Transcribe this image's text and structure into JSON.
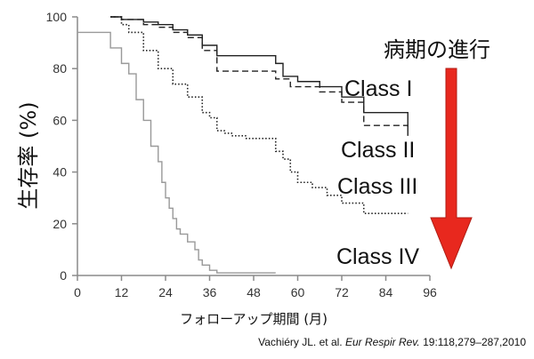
{
  "chart_data": {
    "type": "line",
    "title": "",
    "xlabel": "フォローアップ期間 (月)",
    "ylabel": "生存率 (%)",
    "xlim": [
      0,
      96
    ],
    "ylim": [
      0,
      100
    ],
    "xticks": [
      0,
      12,
      24,
      36,
      48,
      60,
      72,
      84,
      96
    ],
    "yticks": [
      0,
      20,
      40,
      60,
      80,
      100
    ],
    "grid": false,
    "series": [
      {
        "name": "Class I",
        "color": "#222222",
        "dash": "solid",
        "x": [
          9,
          12,
          12,
          18,
          18,
          22,
          22,
          26,
          26,
          30,
          30,
          34,
          34,
          38,
          38,
          54,
          54,
          56,
          56,
          60,
          60,
          66,
          66,
          72,
          72,
          78,
          78,
          90,
          90
        ],
        "y": [
          100,
          100,
          99,
          99,
          98,
          98,
          97,
          97,
          95,
          95,
          93,
          93,
          89,
          89,
          85,
          85,
          82,
          82,
          77,
          77,
          75,
          75,
          73,
          73,
          69,
          69,
          63,
          63,
          56
        ]
      },
      {
        "name": "Class II",
        "color": "#222222",
        "dash": "dashed",
        "x": [
          9,
          12,
          12,
          18,
          18,
          22,
          22,
          26,
          26,
          30,
          30,
          34,
          34,
          38,
          38,
          54,
          54,
          58,
          58,
          66,
          66,
          72,
          72,
          78,
          78,
          90,
          90
        ],
        "y": [
          100,
          100,
          99,
          99,
          97,
          97,
          96,
          96,
          94,
          94,
          92,
          92,
          87,
          87,
          79,
          79,
          76,
          76,
          73,
          73,
          71,
          71,
          67,
          67,
          58,
          58,
          54
        ]
      },
      {
        "name": "Class III",
        "color": "#222222",
        "dash": "dotted",
        "x": [
          9,
          12,
          12,
          14,
          14,
          18,
          18,
          22,
          22,
          26,
          26,
          30,
          30,
          34,
          34,
          36,
          36,
          38,
          38,
          40,
          40,
          42,
          42,
          46,
          46,
          54,
          54,
          56,
          56,
          58,
          58,
          60,
          60,
          64,
          64,
          68,
          68,
          72,
          72,
          78,
          78,
          90
        ],
        "y": [
          100,
          100,
          97,
          97,
          94,
          94,
          87,
          87,
          80,
          80,
          74,
          74,
          69,
          69,
          63,
          63,
          61,
          61,
          56,
          56,
          55,
          55,
          54,
          54,
          53,
          53,
          48,
          48,
          45,
          45,
          40,
          40,
          36,
          36,
          34,
          34,
          31,
          31,
          28,
          28,
          24,
          24
        ]
      },
      {
        "name": "Class IV",
        "color": "#999999",
        "dash": "solid",
        "x": [
          0,
          9,
          9,
          12,
          12,
          14,
          14,
          16,
          16,
          18,
          18,
          20,
          20,
          22,
          22,
          23,
          23,
          24,
          24,
          25,
          25,
          26,
          26,
          27,
          27,
          28,
          28,
          30,
          30,
          32,
          32,
          33,
          33,
          34,
          34,
          36,
          36,
          38,
          38,
          54
        ],
        "y": [
          94,
          94,
          88,
          88,
          82,
          82,
          78,
          78,
          68,
          68,
          60,
          60,
          50,
          50,
          44,
          44,
          36,
          36,
          30,
          30,
          26,
          26,
          22,
          22,
          18,
          18,
          16,
          16,
          13,
          13,
          10,
          10,
          6,
          6,
          4,
          4,
          2,
          2,
          1,
          1
        ]
      }
    ],
    "annotations": [
      "病期の進行"
    ],
    "citation": {
      "prefix": "Vachiéry JL. et al. ",
      "journal": "Eur Respir Rev.",
      "suffix": " 19:118,279–287,2010"
    },
    "arrow_color": "#e8281e"
  }
}
